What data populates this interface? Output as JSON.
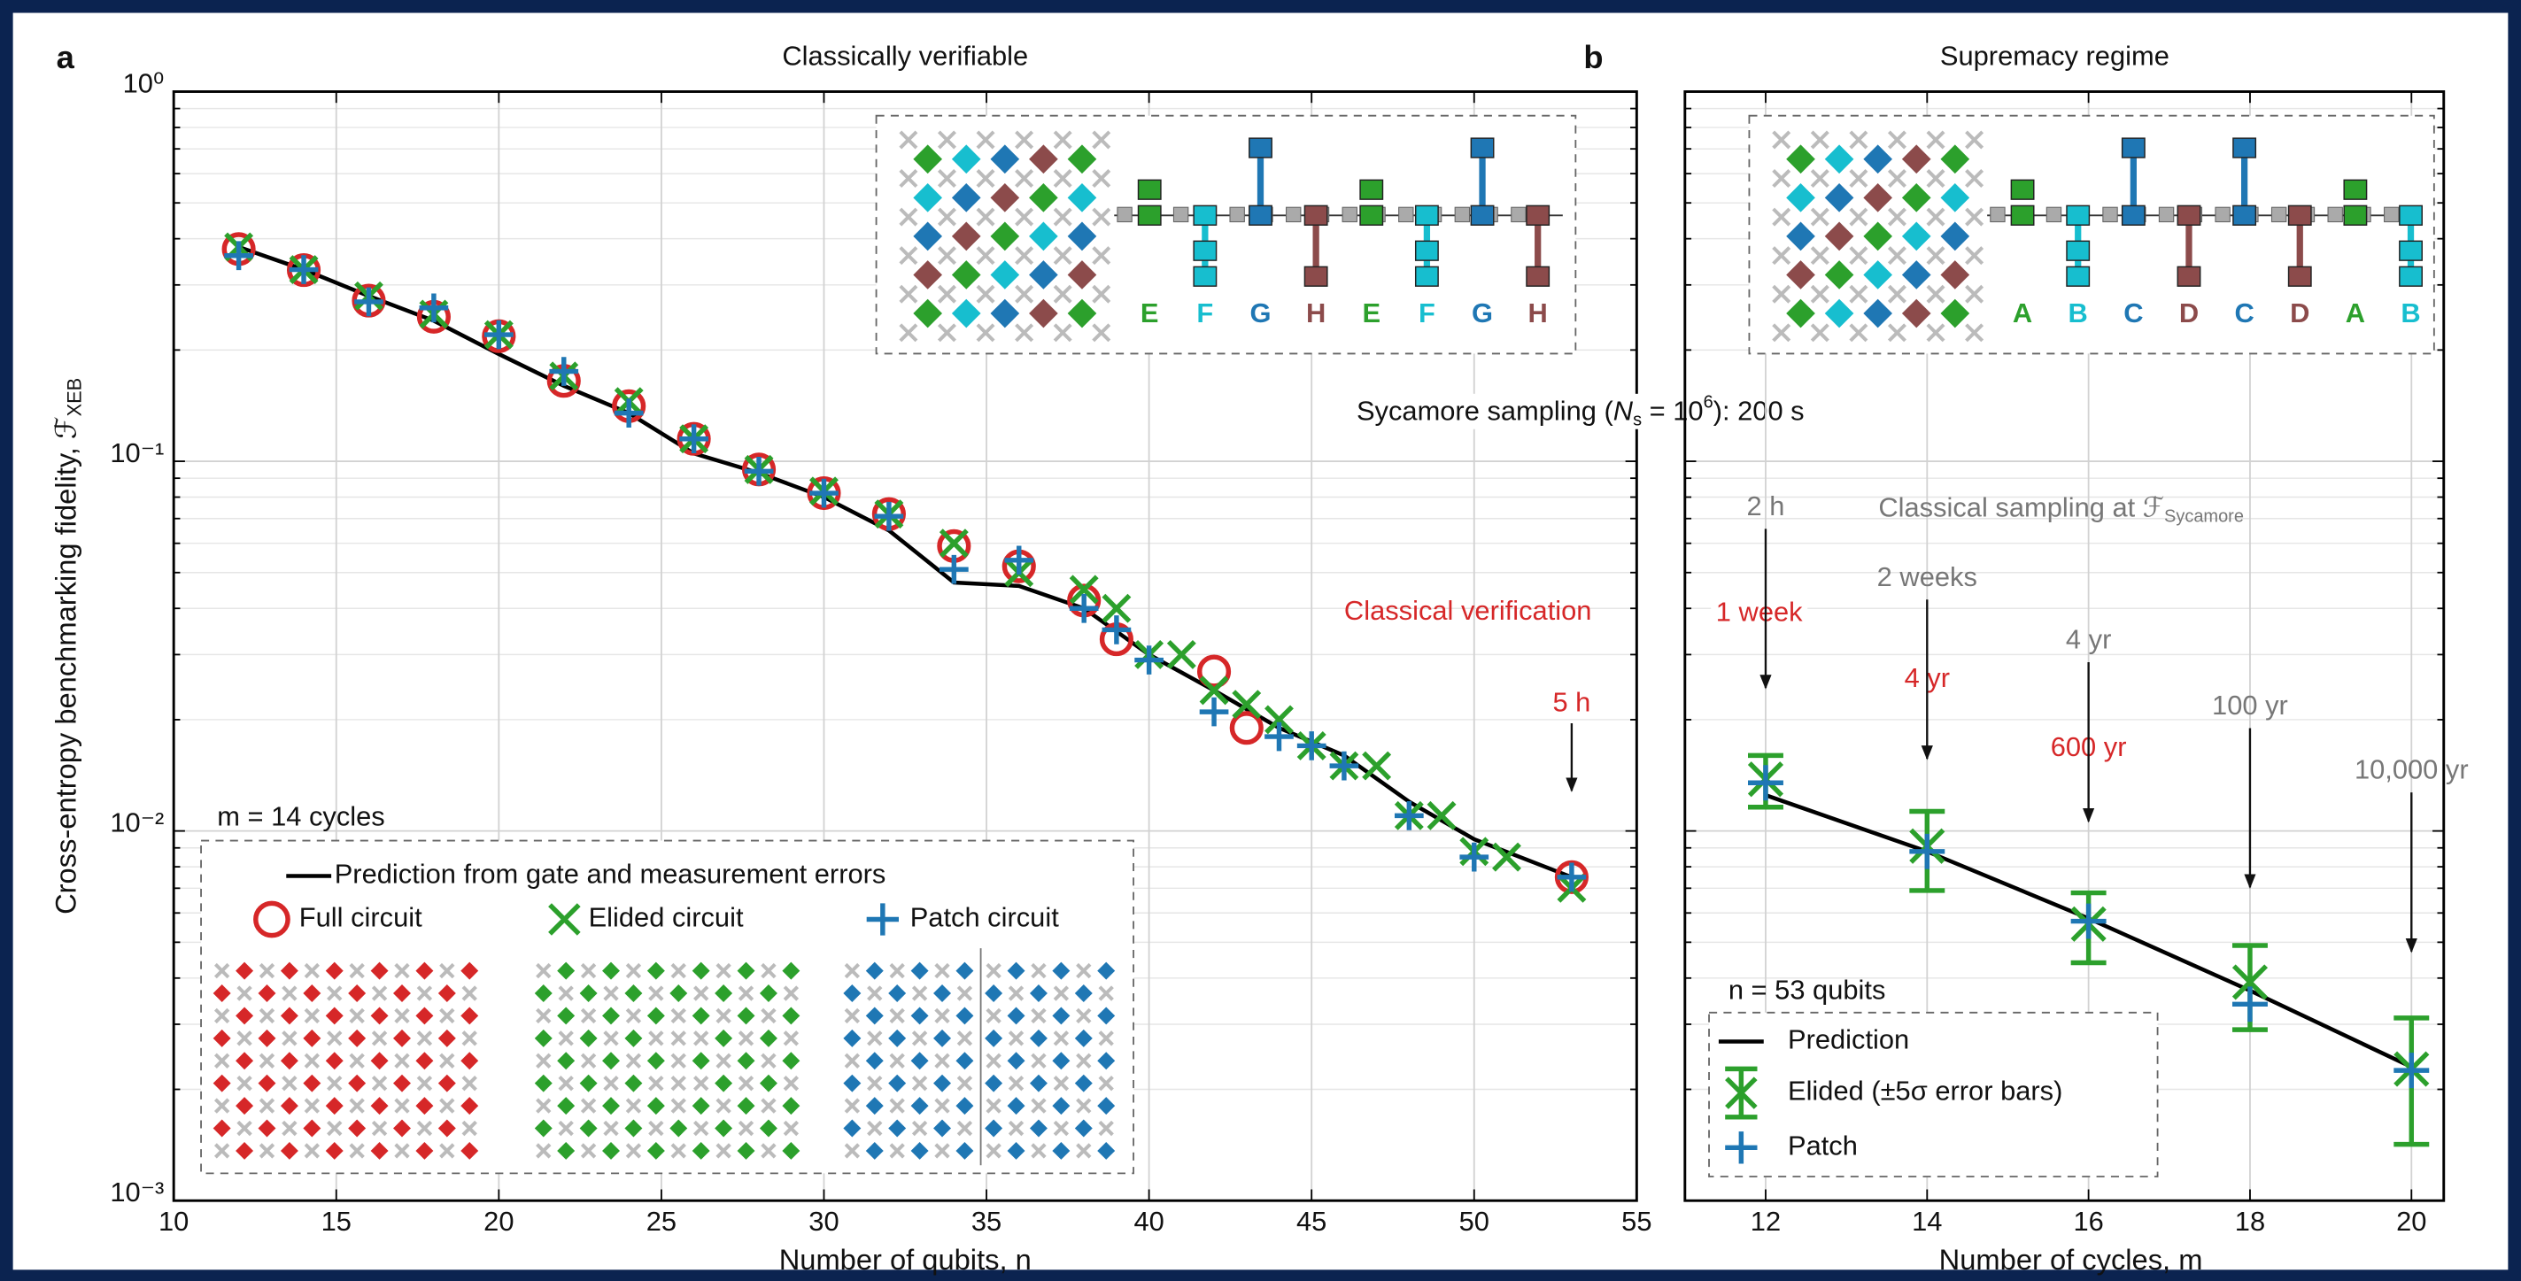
{
  "chart_data": [
    {
      "type": "line",
      "panel_label": "a",
      "title": "Classically verifiable",
      "x_label": "Number of qubits, n",
      "y_label": "Cross-entropy benchmarking fidelity, ℱ",
      "y_label_sub": "XEB",
      "xlim": [
        10,
        55
      ],
      "xticks": [
        10,
        15,
        20,
        25,
        30,
        35,
        40,
        45,
        50,
        55
      ],
      "ylim": [
        0.001,
        1
      ],
      "yscale": "log",
      "yticks": [
        {
          "value": 0.001,
          "label": "10⁻³"
        },
        {
          "value": 0.01,
          "label": "10⁻²"
        },
        {
          "value": 0.1,
          "label": "10⁻¹"
        },
        {
          "value": 1,
          "label": "10⁰"
        }
      ],
      "grid": true,
      "legend_title": "m = 14 cycles",
      "series": [
        {
          "name": "Prediction from gate and measurement errors",
          "color": "#000000",
          "marker": "line",
          "x": [
            12,
            14,
            16,
            18,
            20,
            22,
            24,
            26,
            28,
            30,
            32,
            34,
            36,
            38,
            40,
            42,
            44,
            46,
            48,
            50,
            53
          ],
          "values": [
            0.38,
            0.33,
            0.28,
            0.24,
            0.195,
            0.16,
            0.135,
            0.105,
            0.093,
            0.08,
            0.065,
            0.047,
            0.046,
            0.04,
            0.03,
            0.024,
            0.019,
            0.016,
            0.012,
            0.0095,
            0.0075
          ]
        },
        {
          "name": "Full circuit",
          "color": "#d62728",
          "marker": "circle",
          "x": [
            12,
            14,
            16,
            18,
            20,
            22,
            24,
            26,
            28,
            30,
            32,
            34,
            36,
            38,
            39,
            42,
            43,
            53
          ],
          "values": [
            0.375,
            0.329,
            0.272,
            0.246,
            0.218,
            0.165,
            0.141,
            0.115,
            0.095,
            0.082,
            0.072,
            0.059,
            0.052,
            0.042,
            0.033,
            0.027,
            0.019,
            0.0075
          ]
        },
        {
          "name": "Elided circuit",
          "color": "#2ca02c",
          "marker": "x",
          "x": [
            12,
            14,
            16,
            18,
            20,
            22,
            24,
            26,
            28,
            30,
            32,
            34,
            36,
            38,
            39,
            40,
            41,
            42,
            43,
            44,
            45,
            46,
            47,
            48,
            49,
            50,
            51,
            53
          ],
          "values": [
            0.38,
            0.33,
            0.28,
            0.25,
            0.22,
            0.17,
            0.145,
            0.115,
            0.095,
            0.083,
            0.072,
            0.06,
            0.05,
            0.045,
            0.04,
            0.03,
            0.03,
            0.024,
            0.022,
            0.02,
            0.017,
            0.015,
            0.015,
            0.011,
            0.011,
            0.0088,
            0.0085,
            0.007
          ]
        },
        {
          "name": "Patch circuit",
          "color": "#1f77b4",
          "marker": "plus",
          "x": [
            12,
            14,
            16,
            18,
            20,
            22,
            24,
            26,
            28,
            30,
            32,
            34,
            36,
            38,
            39,
            40,
            42,
            44,
            45,
            46,
            48,
            50,
            53
          ],
          "values": [
            0.36,
            0.33,
            0.27,
            0.26,
            0.22,
            0.175,
            0.135,
            0.115,
            0.094,
            0.082,
            0.071,
            0.051,
            0.054,
            0.04,
            0.035,
            0.029,
            0.021,
            0.018,
            0.017,
            0.015,
            0.011,
            0.0085,
            0.0075
          ]
        }
      ],
      "annotation": {
        "text": "Classical verification",
        "time": "5 h",
        "x": 53,
        "color": "#d62728"
      },
      "circuit_gates": [
        "E",
        "F",
        "G",
        "H",
        "E",
        "F",
        "G",
        "H"
      ],
      "sycamore_note": [
        "Sycamore sampling (",
        "N",
        "s",
        " = 10",
        "6",
        "): 200 s"
      ]
    },
    {
      "type": "line",
      "panel_label": "b",
      "title": "Supremacy regime",
      "x_label": "Number of cycles, m",
      "xlim": [
        11,
        20.4
      ],
      "xticks": [
        12,
        14,
        16,
        18,
        20
      ],
      "ylim": [
        0.001,
        1
      ],
      "yscale": "log",
      "grid": true,
      "legend_title": "n = 53 qubits",
      "series": [
        {
          "name": "Prediction",
          "color": "#000000",
          "marker": "line",
          "x": [
            12,
            14,
            16,
            18,
            20
          ],
          "values": [
            0.0125,
            0.0088,
            0.0058,
            0.0037,
            0.0023
          ]
        },
        {
          "name": "Elided (±5σ error bars)",
          "color": "#2ca02c",
          "marker": "x",
          "x": [
            12,
            14,
            16,
            18,
            20
          ],
          "values": [
            0.0138,
            0.0091,
            0.0056,
            0.0039,
            0.00227
          ],
          "errors": [
            0.0022,
            0.0022,
            0.0012,
            0.001,
            0.00085
          ]
        },
        {
          "name": "Patch",
          "color": "#1f77b4",
          "marker": "plus",
          "x": [
            12,
            14,
            16,
            18,
            20
          ],
          "values": [
            0.0135,
            0.0088,
            0.0057,
            0.0034,
            0.00225
          ]
        }
      ],
      "classical_note": [
        "Classical sampling at ℱ",
        "Sycamore"
      ],
      "annotations": [
        {
          "x": 12,
          "texts": [
            {
              "text": "2 h",
              "color": "#777777"
            },
            {
              "text": "1 week",
              "color": "#d62728"
            }
          ]
        },
        {
          "x": 14,
          "texts": [
            {
              "text": "2 weeks",
              "color": "#777777"
            },
            {
              "text": "4 yr",
              "color": "#d62728"
            }
          ]
        },
        {
          "x": 16,
          "texts": [
            {
              "text": "4 yr",
              "color": "#777777"
            },
            {
              "text": "600 yr",
              "color": "#d62728"
            }
          ]
        },
        {
          "x": 18,
          "texts": [
            {
              "text": "100 yr",
              "color": "#777777"
            }
          ]
        },
        {
          "x": 20,
          "texts": [
            {
              "text": "10,000 yr",
              "color": "#777777"
            }
          ]
        }
      ],
      "circuit_gates": [
        "A",
        "B",
        "C",
        "D",
        "C",
        "D",
        "A",
        "B"
      ]
    }
  ]
}
